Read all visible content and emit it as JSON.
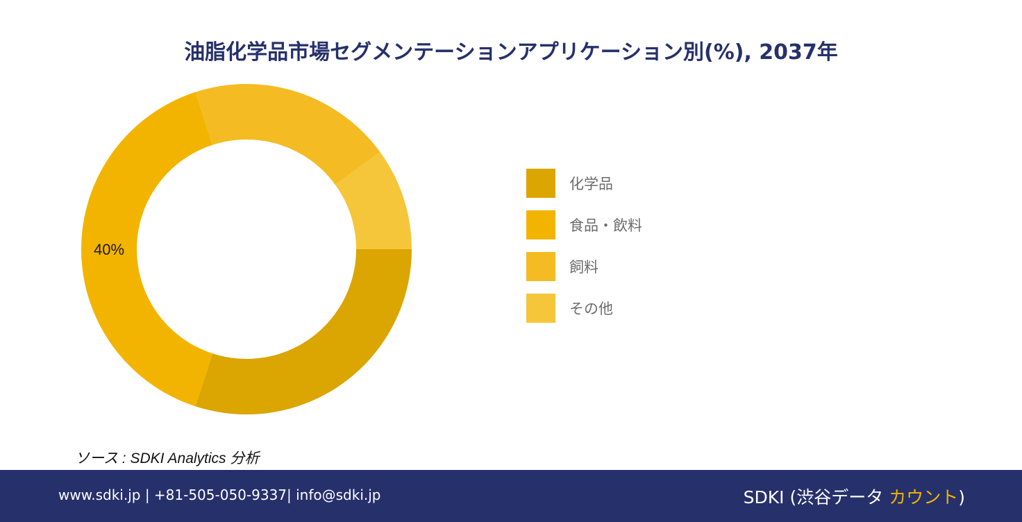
{
  "chart_data": {
    "type": "pie",
    "title": "油脂化学品市場セグメンテーションアプリケーション別(%), 2037年",
    "categories": [
      "化学品",
      "食品・飲料",
      "飼料",
      "その他"
    ],
    "values": [
      30,
      40,
      20,
      10
    ],
    "colors": [
      "#dba502",
      "#f3b400",
      "#f4bc22",
      "#f6c63a"
    ],
    "data_labels": [
      "",
      "40%",
      "",
      ""
    ],
    "legend_position": "right"
  },
  "source_text": "ソース : SDKI Analytics 分析",
  "footer": {
    "contact": "www.sdki.jp | +81-505-050-9337| info@sdki.jp",
    "brand_prefix": "SDKI (渋谷データ ",
    "brand_accent": "カウント",
    "brand_suffix": ")"
  },
  "colors": {
    "footer_bg": "#26306b",
    "title": "#26306b",
    "accent": "#f3b400"
  }
}
